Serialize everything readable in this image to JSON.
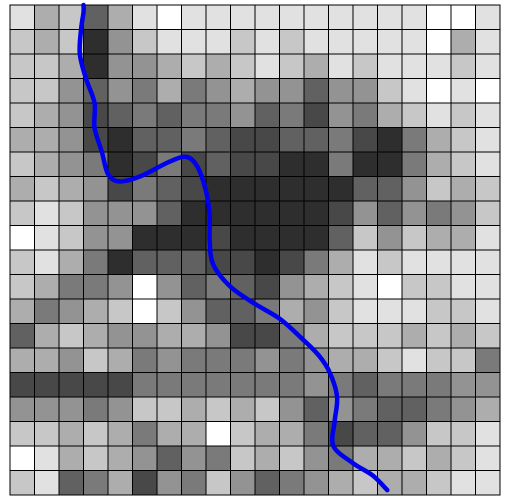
{
  "grid": {
    "rows": 20,
    "cols": 20,
    "levels": [
      [
        9,
        7,
        8,
        4,
        7,
        9,
        10,
        9,
        9,
        9,
        9,
        9,
        9,
        9,
        9,
        9,
        9,
        10,
        10,
        9
      ],
      [
        8,
        7,
        8,
        2,
        6,
        8,
        9,
        9,
        9,
        8,
        9,
        8,
        9,
        9,
        9,
        9,
        9,
        10,
        7,
        9
      ],
      [
        8,
        8,
        7,
        2,
        6,
        6,
        7,
        8,
        7,
        8,
        9,
        8,
        7,
        9,
        8,
        9,
        9,
        9,
        8,
        9
      ],
      [
        8,
        8,
        6,
        4,
        6,
        5,
        7,
        5,
        6,
        7,
        6,
        6,
        4,
        6,
        6,
        8,
        9,
        10,
        9,
        10
      ],
      [
        8,
        7,
        6,
        3,
        4,
        5,
        4,
        5,
        5,
        6,
        4,
        5,
        3,
        6,
        5,
        7,
        8,
        9,
        8,
        9
      ],
      [
        7,
        7,
        6,
        3,
        2,
        4,
        4,
        5,
        4,
        3,
        3,
        4,
        4,
        5,
        3,
        2,
        5,
        7,
        8,
        9
      ],
      [
        8,
        7,
        6,
        5,
        2,
        3,
        5,
        3,
        4,
        3,
        3,
        2,
        2,
        5,
        2,
        2,
        5,
        7,
        8,
        9
      ],
      [
        7,
        8,
        7,
        6,
        3,
        5,
        4,
        3,
        2,
        2,
        2,
        2,
        2,
        2,
        4,
        4,
        6,
        8,
        7,
        8
      ],
      [
        8,
        9,
        8,
        6,
        6,
        6,
        4,
        2,
        2,
        2,
        2,
        2,
        2,
        3,
        6,
        4,
        6,
        5,
        6,
        8
      ],
      [
        10,
        9,
        8,
        6,
        6,
        2,
        2,
        2,
        3,
        2,
        2,
        2,
        2,
        4,
        8,
        6,
        8,
        7,
        7,
        9
      ],
      [
        8,
        9,
        7,
        5,
        2,
        4,
        4,
        4,
        3,
        3,
        2,
        3,
        5,
        7,
        9,
        8,
        9,
        9,
        9,
        9
      ],
      [
        8,
        7,
        5,
        5,
        6,
        10,
        6,
        4,
        5,
        4,
        3,
        6,
        7,
        8,
        9,
        10,
        8,
        8,
        9,
        9
      ],
      [
        7,
        5,
        6,
        7,
        8,
        10,
        8,
        6,
        4,
        4,
        5,
        7,
        6,
        8,
        9,
        9,
        9,
        8,
        8,
        9
      ],
      [
        4,
        7,
        8,
        7,
        6,
        6,
        7,
        7,
        6,
        3,
        3,
        5,
        7,
        8,
        8,
        8,
        7,
        8,
        7,
        8
      ],
      [
        7,
        7,
        6,
        8,
        7,
        5,
        6,
        5,
        5,
        5,
        6,
        5,
        6,
        7,
        7,
        8,
        9,
        8,
        8,
        5
      ],
      [
        3,
        3,
        3,
        3,
        3,
        5,
        5,
        5,
        5,
        5,
        5,
        5,
        6,
        5,
        4,
        5,
        5,
        5,
        6,
        6
      ],
      [
        6,
        6,
        6,
        5,
        6,
        8,
        8,
        7,
        8,
        7,
        8,
        6,
        4,
        6,
        5,
        4,
        4,
        5,
        6,
        7
      ],
      [
        8,
        8,
        7,
        8,
        7,
        5,
        7,
        7,
        10,
        8,
        7,
        7,
        5,
        3,
        4,
        4,
        6,
        8,
        8,
        9
      ],
      [
        10,
        9,
        7,
        8,
        7,
        6,
        4,
        6,
        5,
        8,
        7,
        8,
        6,
        5,
        7,
        7,
        8,
        7,
        8,
        9
      ],
      [
        8,
        9,
        4,
        5,
        7,
        3,
        6,
        5,
        8,
        6,
        4,
        5,
        6,
        7,
        8,
        7,
        7,
        8,
        9,
        9
      ]
    ]
  },
  "path": {
    "color": "#0000ee",
    "points": [
      [
        3.0,
        0.0
      ],
      [
        3.0,
        0.3
      ],
      [
        2.9,
        1.0
      ],
      [
        2.85,
        2.0
      ],
      [
        3.1,
        3.0
      ],
      [
        3.45,
        4.0
      ],
      [
        3.45,
        5.0
      ],
      [
        3.75,
        6.0
      ],
      [
        4.0,
        6.9
      ],
      [
        4.45,
        7.2
      ],
      [
        5.3,
        7.0
      ],
      [
        6.5,
        6.4
      ],
      [
        7.2,
        6.2
      ],
      [
        7.65,
        6.6
      ],
      [
        8.0,
        7.6
      ],
      [
        8.15,
        8.6
      ],
      [
        8.15,
        9.6
      ],
      [
        8.3,
        10.6
      ],
      [
        9.0,
        11.5
      ],
      [
        10.0,
        12.2
      ],
      [
        11.0,
        12.8
      ],
      [
        11.9,
        13.6
      ],
      [
        12.6,
        14.3
      ],
      [
        13.05,
        15.0
      ],
      [
        13.35,
        16.0
      ],
      [
        13.25,
        17.0
      ],
      [
        13.2,
        18.0
      ],
      [
        14.0,
        18.7
      ],
      [
        14.8,
        19.2
      ],
      [
        15.4,
        19.8
      ]
    ]
  },
  "palette": {
    "levels": [
      "#000000",
      "#1a1a1a",
      "#2e2e2e",
      "#484848",
      "#616161",
      "#7a7a7a",
      "#939393",
      "#adadad",
      "#c7c7c7",
      "#e1e1e1",
      "#ffffff"
    ],
    "grid_line": "#000000"
  }
}
